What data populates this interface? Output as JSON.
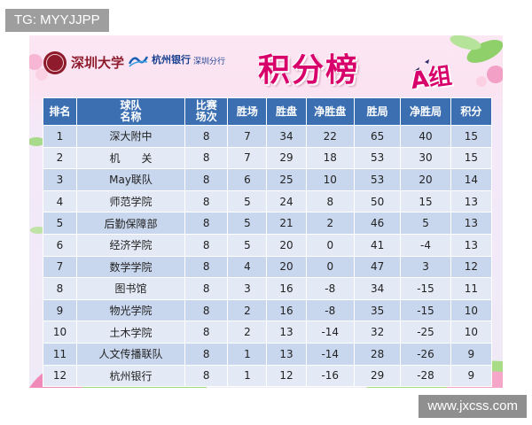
{
  "overlay": {
    "tag": "TG: MYYJJPP",
    "watermark": "www.jxcss.com"
  },
  "header": {
    "university": "深圳大学",
    "bank_name": "杭州银行",
    "bank_branch": "深圳分行",
    "title": "积分榜",
    "group": "A组"
  },
  "colors": {
    "title": "#d8006a",
    "table_header": "#3b6fb2",
    "row_odd": "#c9d7ee",
    "row_even": "#e3eaf6"
  },
  "table": {
    "headers": [
      "排名",
      "球队名称",
      "比赛场次",
      "胜场",
      "胜盘",
      "净胜盘",
      "胜局",
      "净胜局",
      "积分"
    ],
    "rows": [
      [
        "1",
        "深大附中",
        "8",
        "7",
        "34",
        "22",
        "65",
        "40",
        "15"
      ],
      [
        "2",
        "机　　关",
        "8",
        "7",
        "29",
        "18",
        "53",
        "30",
        "15"
      ],
      [
        "3",
        "May联队",
        "8",
        "6",
        "25",
        "10",
        "53",
        "20",
        "14"
      ],
      [
        "4",
        "师范学院",
        "8",
        "5",
        "24",
        "8",
        "50",
        "15",
        "13"
      ],
      [
        "5",
        "后勤保障部",
        "8",
        "5",
        "21",
        "2",
        "46",
        "5",
        "13"
      ],
      [
        "6",
        "经济学院",
        "8",
        "5",
        "20",
        "0",
        "41",
        "-4",
        "13"
      ],
      [
        "7",
        "数学学院",
        "8",
        "4",
        "20",
        "0",
        "47",
        "3",
        "12"
      ],
      [
        "8",
        "图书馆",
        "8",
        "3",
        "16",
        "-8",
        "34",
        "-15",
        "11"
      ],
      [
        "9",
        "物光学院",
        "8",
        "2",
        "16",
        "-8",
        "35",
        "-15",
        "10"
      ],
      [
        "10",
        "土木学院",
        "8",
        "2",
        "13",
        "-14",
        "32",
        "-25",
        "10"
      ],
      [
        "11",
        "人文传播联队",
        "8",
        "1",
        "13",
        "-14",
        "28",
        "-26",
        "9"
      ],
      [
        "12",
        "杭州银行",
        "8",
        "1",
        "12",
        "-16",
        "29",
        "-28",
        "9"
      ]
    ]
  }
}
